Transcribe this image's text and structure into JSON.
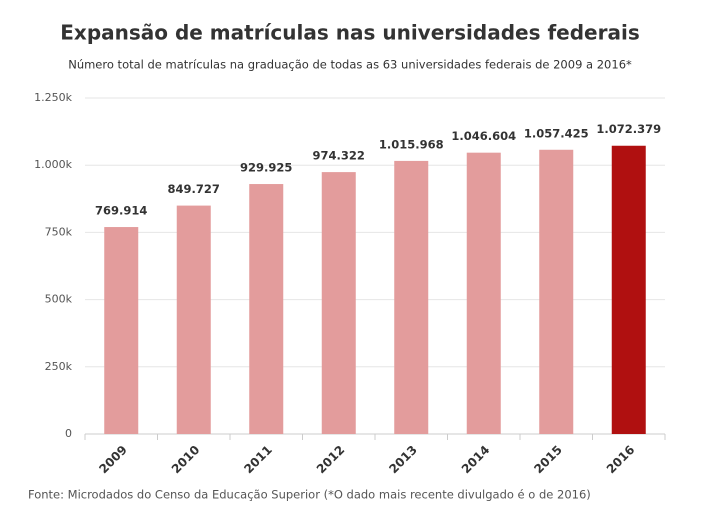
{
  "chart_data": {
    "type": "bar",
    "title": "Expansão de matrículas nas universidades federais",
    "subtitle": "Número total de matrículas na graduação de todas as 63 universidades federais de 2009 a 2016*",
    "categories": [
      "2009",
      "2010",
      "2011",
      "2012",
      "2013",
      "2014",
      "2015",
      "2016"
    ],
    "values": [
      769914,
      849727,
      929925,
      974322,
      1015968,
      1046604,
      1057425,
      1072379
    ],
    "value_labels": [
      "769.914",
      "849.727",
      "929.925",
      "974.322",
      "1.015.968",
      "1.046.604",
      "1.057.425",
      "1.072.379"
    ],
    "colors": [
      "#e39c9c",
      "#e39c9c",
      "#e39c9c",
      "#e39c9c",
      "#e39c9c",
      "#e39c9c",
      "#e39c9c",
      "#b01010"
    ],
    "ylim": [
      0,
      1250000
    ],
    "yticks": [
      0,
      {
        "value": 250000,
        "label": "250k"
      },
      {
        "value": 500000,
        "label": "500k"
      },
      {
        "value": 750000,
        "label": "750k"
      },
      {
        "value": 1000000,
        "label": "1.000k"
      },
      {
        "value": 1250000,
        "label": "1.250k"
      }
    ],
    "grid": true,
    "source": "Fonte: Microdados do Censo da Educação Superior (*O dado mais recente divulgado é o de 2016)"
  }
}
